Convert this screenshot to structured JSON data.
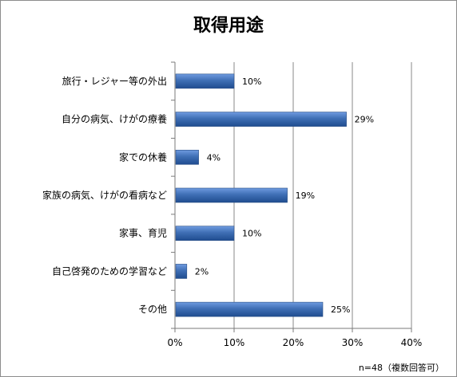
{
  "chart_data": {
    "type": "bar",
    "orientation": "horizontal",
    "title": "取得用途",
    "categories": [
      "旅行・レジャー等の外出",
      "自分の病気、けがの療養",
      "家での休養",
      "家族の病気、けがの看病など",
      "家事、育児",
      "自己啓発のための学習など",
      "その他"
    ],
    "values": [
      10,
      29,
      4,
      19,
      10,
      2,
      25
    ],
    "value_labels": [
      "10%",
      "29%",
      "4%",
      "19%",
      "10%",
      "2%",
      "25%"
    ],
    "xlim": [
      0,
      40
    ],
    "xticks": [
      0,
      10,
      20,
      30,
      40
    ],
    "xtick_labels": [
      "0%",
      "10%",
      "20%",
      "30%",
      "40%"
    ],
    "grid": "vertical",
    "bar_color": "#3f6fb5",
    "note": "n=48（複数回答可）"
  }
}
